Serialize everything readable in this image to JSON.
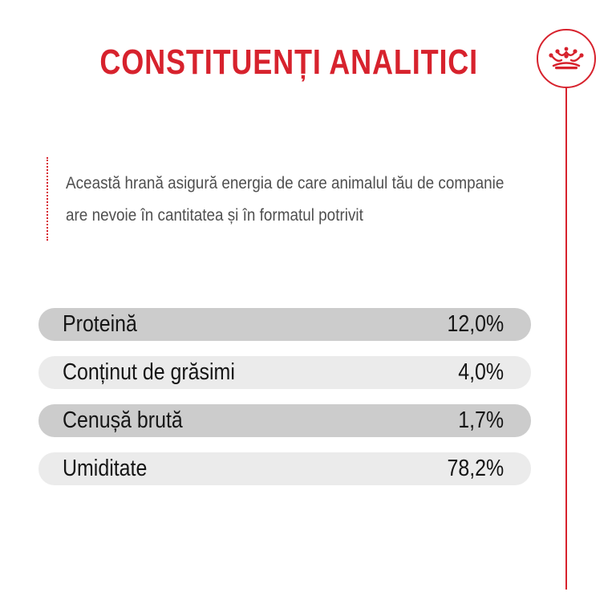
{
  "title": "CONSTITUENȚI ANALITICI",
  "intro": {
    "line1": "Această hrană asigură energia de care animalul tău de companie",
    "line2": "are nevoie în cantitatea și în formatul potrivit"
  },
  "emblem_icon": "crown-icon",
  "colors": {
    "accent": "#d7222d",
    "row_dark": "#cccccc",
    "row_light": "#ebebeb"
  },
  "constituents": [
    {
      "label": "Proteină",
      "value": "12,0%",
      "shade": "dark"
    },
    {
      "label": "Conținut de grăsimi",
      "value": "4,0%",
      "shade": "light"
    },
    {
      "label": "Cenușă brută",
      "value": "1,7%",
      "shade": "dark"
    },
    {
      "label": "Umiditate",
      "value": "78,2%",
      "shade": "light"
    }
  ]
}
